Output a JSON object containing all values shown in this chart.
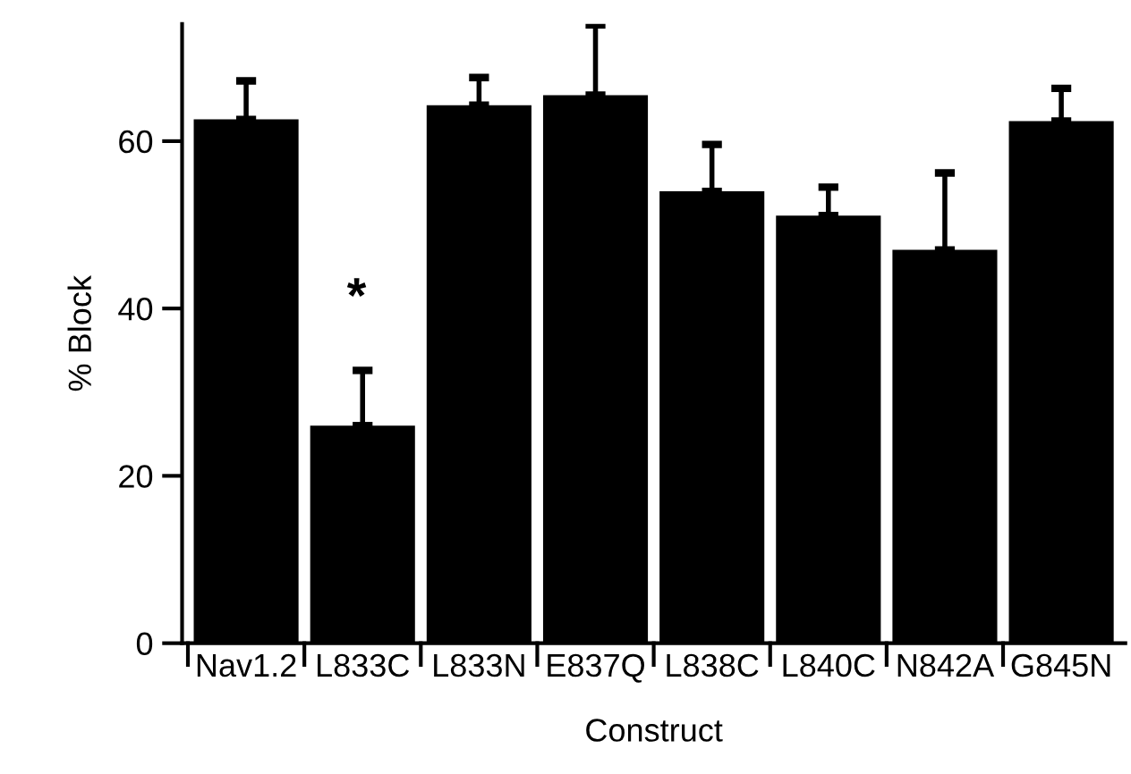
{
  "chart_data": {
    "type": "bar",
    "xlabel": "Construct",
    "ylabel": "% Block",
    "categories": [
      "Nav1.2",
      "L833C",
      "L833N",
      "E837Q",
      "L838C",
      "L840C",
      "N842A",
      "G845N"
    ],
    "values": [
      62.6,
      26.0,
      64.3,
      65.5,
      54.0,
      51.1,
      47.0,
      62.4
    ],
    "errors": [
      [
        62.6,
        67.2
      ],
      [
        26.0,
        32.6
      ],
      [
        64.3,
        67.6
      ],
      [
        65.5,
        73.9
      ],
      [
        54.0,
        59.6
      ],
      [
        51.1,
        54.5
      ],
      [
        47.0,
        56.2
      ],
      [
        62.4,
        66.3
      ]
    ],
    "color": "#000000",
    "ylim": [
      0,
      74
    ],
    "yticks": [
      0,
      20,
      40,
      60
    ],
    "grid": false,
    "legend": false,
    "annotations": [
      "*"
    ]
  }
}
